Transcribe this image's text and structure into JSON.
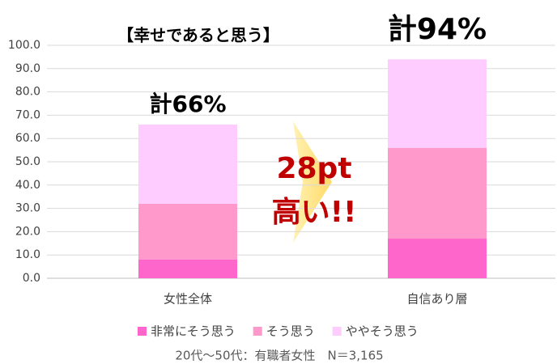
{
  "chart_data": {
    "type": "stacked_bar",
    "title": "【幸せであると思う】",
    "categories": [
      "女性全体",
      "自信あり層"
    ],
    "series": [
      {
        "name": "非常にそう思う",
        "color": "#ff66cc",
        "values": [
          8,
          17
        ]
      },
      {
        "name": "そう思う",
        "color": "#ff99cc",
        "values": [
          24,
          39
        ]
      },
      {
        "name": "ややそう思う",
        "color": "#ffccff",
        "values": [
          34,
          38
        ]
      }
    ],
    "ylim": [
      0,
      100
    ],
    "yticks": [
      {
        "value": 0,
        "label": "0.0"
      },
      {
        "value": 10,
        "label": "10.0"
      },
      {
        "value": 20,
        "label": "20.0"
      },
      {
        "value": 30,
        "label": "30.0"
      },
      {
        "value": 40,
        "label": "40.0"
      },
      {
        "value": 50,
        "label": "50.0"
      },
      {
        "value": 60,
        "label": "60.0"
      },
      {
        "value": 70,
        "label": "70.0"
      },
      {
        "value": 80,
        "label": "80.0"
      },
      {
        "value": 90,
        "label": "90.0"
      },
      {
        "value": 100,
        "label": "100.0"
      }
    ],
    "grid": true,
    "annotations": [
      "計66%",
      "計94%",
      "28pt",
      "高い!!"
    ],
    "footnote": "20代～50代：有職者女性　N＝3,165"
  }
}
